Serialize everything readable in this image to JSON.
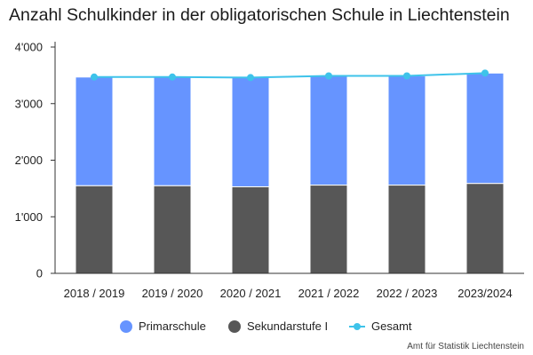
{
  "chart_data": {
    "type": "bar",
    "stacked": true,
    "title": "Anzahl Schulkinder in der obligatorischen Schule in Liechtenstein",
    "categories": [
      "2018 / 2019",
      "2019 / 2020",
      "2020 / 2021",
      "2021 / 2022",
      "2022 / 2023",
      "2023/2024"
    ],
    "series": [
      {
        "name": "Sekundarstufe I",
        "type": "bar",
        "color": "#575757",
        "values": [
          1550,
          1550,
          1530,
          1560,
          1560,
          1590
        ]
      },
      {
        "name": "Primarschule",
        "type": "bar",
        "color": "#6694ff",
        "values": [
          1920,
          1920,
          1930,
          1930,
          1930,
          1950
        ]
      },
      {
        "name": "Gesamt",
        "type": "line",
        "color": "#3ec3ea",
        "values": [
          3470,
          3470,
          3460,
          3490,
          3490,
          3540
        ]
      }
    ],
    "ylim": [
      0,
      4000
    ],
    "yticks": [
      0,
      1000,
      2000,
      3000,
      4000
    ],
    "ytick_labels": [
      "0",
      "1'000",
      "2'000",
      "3'000",
      "4'000"
    ],
    "grid": false,
    "legend_position": "bottom"
  },
  "legend": {
    "primarschule": "Primarschule",
    "sekundarstufe": "Sekundarstufe I",
    "gesamt": "Gesamt"
  },
  "source": "Amt für Statistik Liechtenstein"
}
